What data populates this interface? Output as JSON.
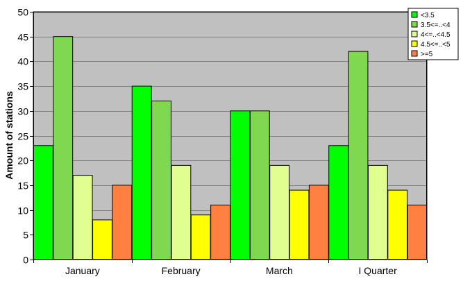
{
  "chart_data": {
    "type": "bar",
    "title": "",
    "xlabel": "",
    "ylabel": "Amount of stations",
    "categories": [
      "January",
      "February",
      "March",
      "I Quarter"
    ],
    "ylim": [
      0,
      50
    ],
    "yticks": [
      0,
      5,
      10,
      15,
      20,
      25,
      30,
      35,
      40,
      45,
      50
    ],
    "grid": true,
    "legend_position": "top-right",
    "plot_background": "#C0C0C0",
    "series": [
      {
        "name": "<3.5",
        "color": "#00FF00",
        "values": [
          23,
          35,
          30,
          23
        ]
      },
      {
        "name": "3.5<=..<4",
        "color": "#80D850",
        "values": [
          45,
          32,
          30,
          42
        ]
      },
      {
        "name": "4<=..<4.5",
        "color": "#E0FF90",
        "values": [
          17,
          19,
          19,
          19
        ]
      },
      {
        "name": "4.5<=..<5",
        "color": "#FFFF00",
        "values": [
          8,
          9,
          14,
          14
        ]
      },
      {
        "name": ">=5",
        "color": "#FF8040",
        "values": [
          15,
          11,
          15,
          11
        ]
      }
    ]
  }
}
